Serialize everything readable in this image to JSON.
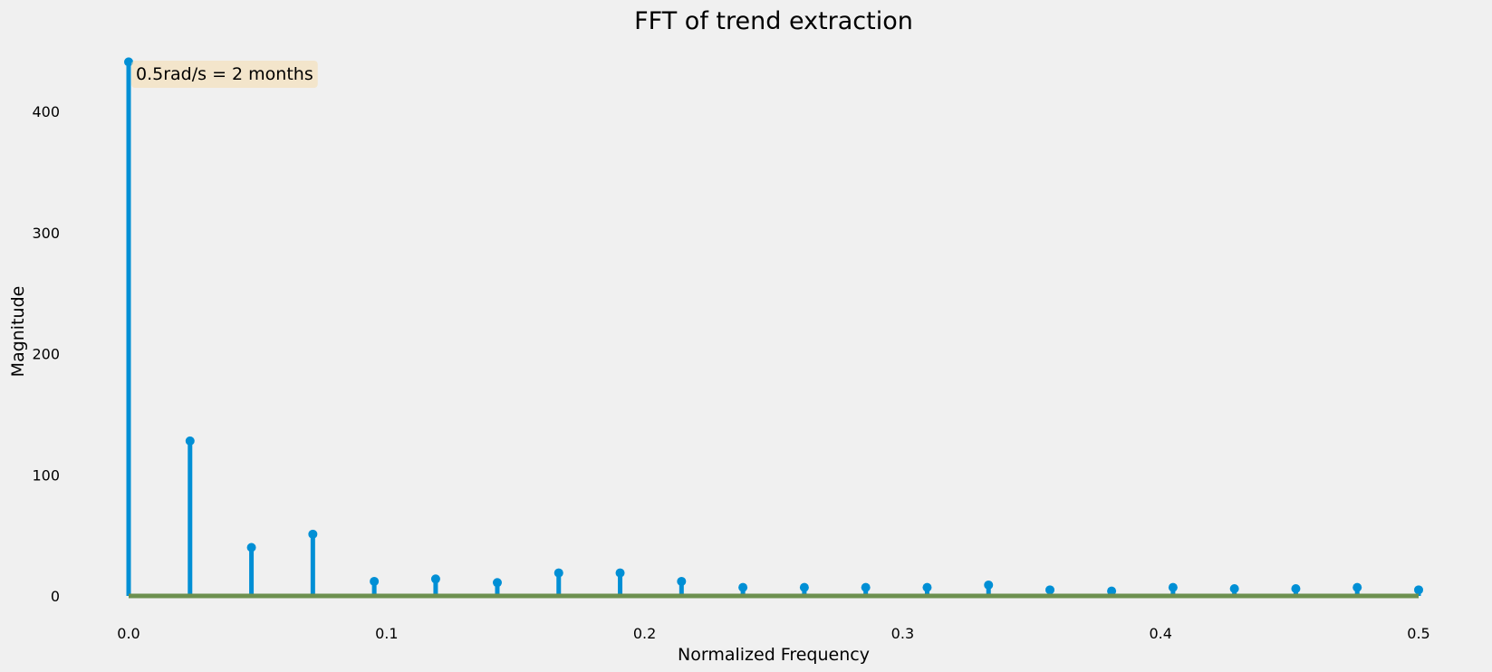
{
  "chart_data": {
    "type": "stem",
    "title": "FFT of trend extraction",
    "xlabel": "Normalized Frequency",
    "ylabel": "Magnitude",
    "xlim": [
      0.0,
      0.5
    ],
    "ylim": [
      0,
      440
    ],
    "xticks": [
      0.0,
      0.1,
      0.2,
      0.3,
      0.4,
      0.5
    ],
    "xtick_labels": [
      "0.0",
      "0.1",
      "0.2",
      "0.3",
      "0.4",
      "0.5"
    ],
    "yticks": [
      0,
      100,
      200,
      300,
      400
    ],
    "ytick_labels": [
      "0",
      "100",
      "200",
      "300",
      "400"
    ],
    "grid": false,
    "annotation": "0.5rad/s = 2 months",
    "stem_color": "#008fd5",
    "baseline_color": "#6d904f",
    "annotation_bg": "#f5deb3",
    "background": "#f0f0f0",
    "x": [
      0.0,
      0.0238,
      0.0476,
      0.0714,
      0.0952,
      0.119,
      0.1429,
      0.1667,
      0.1905,
      0.2143,
      0.2381,
      0.2619,
      0.2857,
      0.3095,
      0.3333,
      0.3571,
      0.381,
      0.4048,
      0.4286,
      0.4524,
      0.4762,
      0.5
    ],
    "values": [
      441,
      128,
      40,
      51,
      12,
      14,
      11,
      19,
      19,
      12,
      7,
      7,
      7,
      7,
      9,
      5,
      4,
      7,
      6,
      6,
      7,
      5
    ]
  }
}
